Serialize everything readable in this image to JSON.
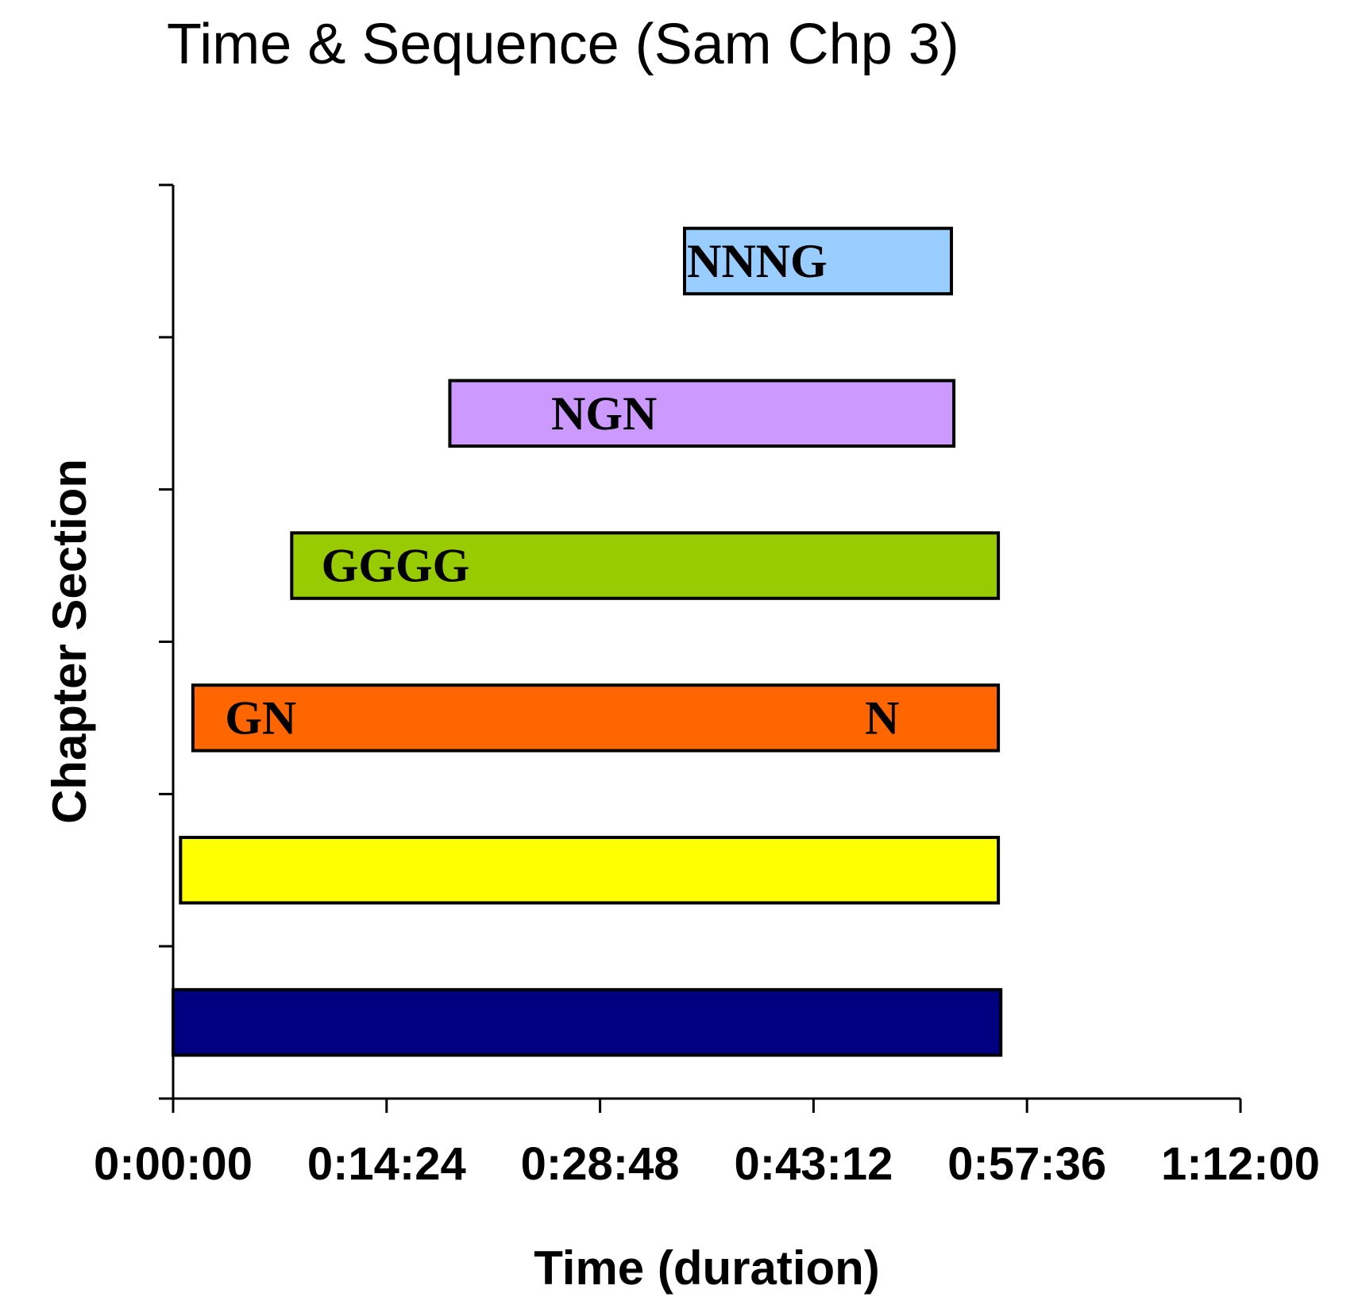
{
  "chart_data": {
    "type": "bar",
    "orientation": "horizontal",
    "title": "Time & Sequence (Sam Chp 3)",
    "xlabel": "Time (duration)",
    "ylabel": "Chapter Section",
    "xlim_seconds": [
      0,
      4320
    ],
    "x_ticks": [
      "0:00:00",
      "0:14:24",
      "0:28:48",
      "0:43:12",
      "0:57:36",
      "1:12:00"
    ],
    "grid": false,
    "legend": "none",
    "bars": [
      {
        "start": "0:00:00",
        "end": "0:55:50",
        "start_seconds": 0,
        "end_seconds": 3350,
        "color": "#000080",
        "labels": []
      },
      {
        "start": "0:00:30",
        "end": "0:55:40",
        "start_seconds": 30,
        "end_seconds": 3340,
        "color": "#FFFF00",
        "labels": []
      },
      {
        "start": "0:01:20",
        "end": "0:55:40",
        "start_seconds": 80,
        "end_seconds": 3340,
        "color": "#FF6600",
        "labels": [
          {
            "text": "GN",
            "at": "0:03:30",
            "at_seconds": 210
          },
          {
            "text": "N",
            "at": "0:46:40",
            "at_seconds": 2800
          }
        ]
      },
      {
        "start": "0:08:00",
        "end": "0:55:40",
        "start_seconds": 480,
        "end_seconds": 3340,
        "color": "#99CC00",
        "labels": [
          {
            "text": "GGGG",
            "at": "0:10:00",
            "at_seconds": 600
          }
        ]
      },
      {
        "start": "0:18:40",
        "end": "0:52:40",
        "start_seconds": 1120,
        "end_seconds": 3160,
        "color": "#CC99FF",
        "labels": [
          {
            "text": "NGN",
            "at": "0:25:30",
            "at_seconds": 1530
          }
        ]
      },
      {
        "start": "0:34:30",
        "end": "0:52:30",
        "start_seconds": 2070,
        "end_seconds": 3150,
        "color": "#99CCFF",
        "labels": [
          {
            "text": "NNNG",
            "at": "0:34:40",
            "at_seconds": 2080
          }
        ]
      }
    ]
  }
}
